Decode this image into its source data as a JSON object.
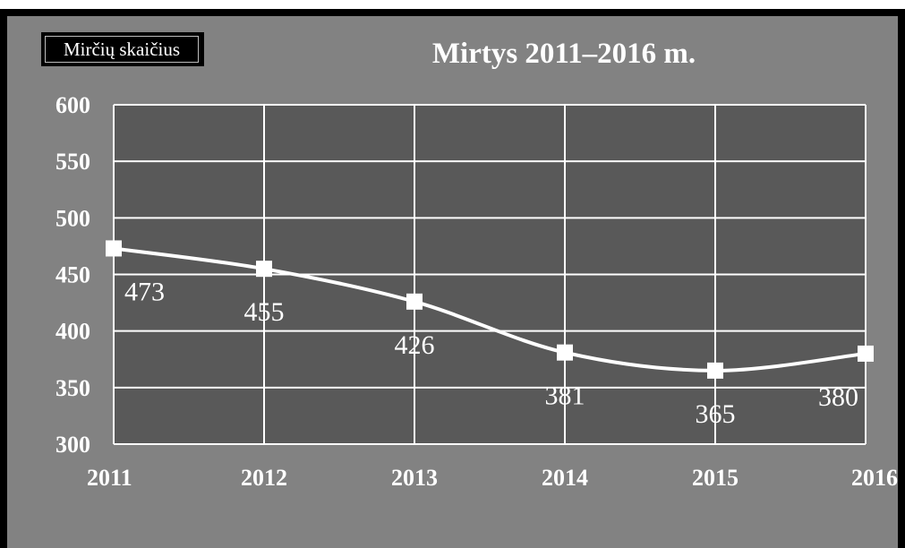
{
  "chart_data": {
    "type": "line",
    "title": "Mirtys 2011–2016 m.",
    "legend_label": "Mirčių skaičius",
    "legend_position": "top-left",
    "x": [
      "2011",
      "2012",
      "2013",
      "2014",
      "2015",
      "2016"
    ],
    "series": [
      {
        "name": "Mirčių skaičius",
        "values": [
          473,
          455,
          426,
          381,
          365,
          380
        ]
      }
    ],
    "data_labels": [
      "473",
      "455",
      "426",
      "381",
      "365",
      "380"
    ],
    "y_ticks": [
      "300",
      "350",
      "400",
      "450",
      "500",
      "550",
      "600"
    ],
    "ylim": [
      300,
      600
    ],
    "grid": true,
    "smooth": true,
    "colors": {
      "background": "#828282",
      "plot_area": "#595959",
      "line": "#ffffff",
      "grid": "#ffffff",
      "text": "#ffffff"
    }
  }
}
